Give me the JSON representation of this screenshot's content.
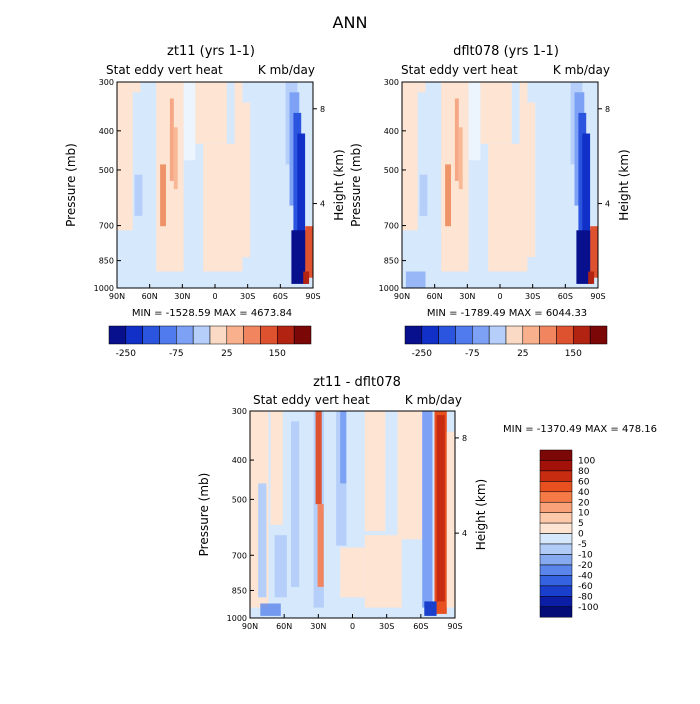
{
  "page_title": "ANN",
  "chart_data": [
    {
      "type": "heatmap",
      "id": "p1",
      "title": "zt11 (yrs 1-1)",
      "subtitle_left": "Stat eddy vert heat",
      "subtitle_right": "K mb/day",
      "xlabel": "",
      "ylabel": "Pressure (mb)",
      "y2label": "Height (km)",
      "x_ticks": [
        "90N",
        "60N",
        "30N",
        "0",
        "30S",
        "60S",
        "90S"
      ],
      "y_ticks": [
        "300",
        "400",
        "500",
        "700",
        "850",
        "1000"
      ],
      "y2_ticks": [
        "8",
        "4"
      ],
      "min_max": "MIN = -1528.59   MAX = 4673.84",
      "min": -1528.59,
      "max": 4673.84,
      "colorbar_labels": [
        "-250",
        "-75",
        "25",
        "150"
      ]
    },
    {
      "type": "heatmap",
      "id": "p2",
      "title": "dflt078 (yrs 1-1)",
      "subtitle_left": "Stat eddy vert heat",
      "subtitle_right": "K mb/day",
      "xlabel": "",
      "ylabel": "Pressure (mb)",
      "y2label": "Height (km)",
      "x_ticks": [
        "90N",
        "60N",
        "30N",
        "0",
        "30S",
        "60S",
        "90S"
      ],
      "y_ticks": [
        "300",
        "400",
        "500",
        "700",
        "850",
        "1000"
      ],
      "y2_ticks": [
        "8",
        "4"
      ],
      "min_max": "MIN = -1789.49   MAX = 6044.33",
      "min": -1789.49,
      "max": 6044.33,
      "colorbar_labels": [
        "-250",
        "-75",
        "25",
        "150"
      ]
    },
    {
      "type": "heatmap",
      "id": "p3",
      "title": "zt11 - dflt078",
      "subtitle_left": "Stat eddy vert heat",
      "subtitle_right": "K mb/day",
      "xlabel": "",
      "ylabel": "Pressure (mb)",
      "y2label": "Height (km)",
      "x_ticks": [
        "90N",
        "60N",
        "30N",
        "0",
        "30S",
        "60S",
        "90S"
      ],
      "y_ticks": [
        "300",
        "400",
        "500",
        "700",
        "850",
        "1000"
      ],
      "y2_ticks": [
        "8",
        "4"
      ],
      "min_max": "MIN = -1370.49   MAX = 478.16",
      "min": -1370.49,
      "max": 478.16,
      "colorbar_labels": [
        "100",
        "80",
        "60",
        "40",
        "20",
        "10",
        "5",
        "0",
        "-5",
        "-10",
        "-20",
        "-40",
        "-60",
        "-80",
        "-100"
      ]
    }
  ],
  "colors": {
    "scale12": [
      "#08108e",
      "#1030c8",
      "#2b55de",
      "#4f7bef",
      "#7da2f5",
      "#b5cffa",
      "#fbdac5",
      "#f8b08d",
      "#f08560",
      "#de5230",
      "#b32312",
      "#7c0707"
    ],
    "scale16": [
      "#7c0707",
      "#a31208",
      "#c82c10",
      "#e8501f",
      "#f67a45",
      "#f9a27a",
      "#fcc9aa",
      "#fde4d3",
      "#d6e8fb",
      "#b0ccf6",
      "#86aaf0",
      "#5a86ec",
      "#3562e0",
      "#1a3fcc",
      "#0c1ea6",
      "#040c78"
    ],
    "pale_blue": "#d6e8fb",
    "pale_peach": "#fde4d3"
  }
}
